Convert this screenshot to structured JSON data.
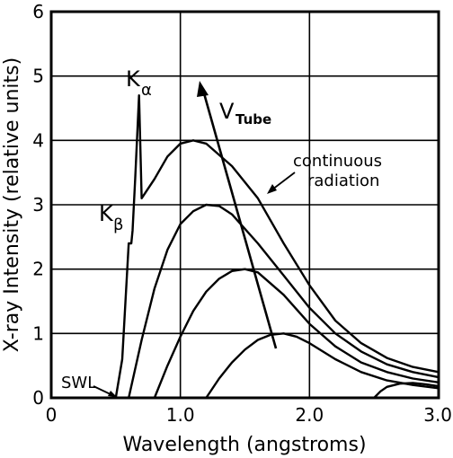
{
  "chart_data": {
    "type": "line",
    "xlabel": "Wavelength (angstroms)",
    "ylabel": "X-ray Intensity (relative units)",
    "xlim": [
      0,
      3.0
    ],
    "ylim": [
      0,
      6
    ],
    "x_ticks": [
      {
        "value": 0,
        "label": "0"
      },
      {
        "value": 1.0,
        "label": "1.0"
      },
      {
        "value": 2.0,
        "label": "2.0"
      },
      {
        "value": 3.0,
        "label": "3.0"
      }
    ],
    "y_ticks": [
      {
        "value": 0,
        "label": "0"
      },
      {
        "value": 1,
        "label": "1"
      },
      {
        "value": 2,
        "label": "2"
      },
      {
        "value": 3,
        "label": "3"
      },
      {
        "value": 4,
        "label": "4"
      },
      {
        "value": 5,
        "label": "5"
      },
      {
        "value": 6,
        "label": "6"
      }
    ],
    "grid": true,
    "series": [
      {
        "points": [
          [
            0.5,
            0
          ],
          [
            0.55,
            0.6
          ],
          [
            0.6,
            2.4
          ],
          [
            0.62,
            2.4
          ],
          [
            0.63,
            2.6
          ],
          [
            0.65,
            3.4
          ],
          [
            0.68,
            4.7
          ],
          [
            0.7,
            3.1
          ],
          [
            0.8,
            3.4
          ],
          [
            0.9,
            3.75
          ],
          [
            1.0,
            3.95
          ],
          [
            1.1,
            4.0
          ],
          [
            1.2,
            3.95
          ],
          [
            1.4,
            3.6
          ],
          [
            1.6,
            3.1
          ],
          [
            1.8,
            2.4
          ],
          [
            2.0,
            1.75
          ],
          [
            2.2,
            1.2
          ],
          [
            2.4,
            0.85
          ],
          [
            2.6,
            0.62
          ],
          [
            2.8,
            0.48
          ],
          [
            3.0,
            0.4
          ]
        ]
      },
      {
        "points": [
          [
            0.6,
            0
          ],
          [
            0.7,
            0.9
          ],
          [
            0.8,
            1.7
          ],
          [
            0.9,
            2.3
          ],
          [
            1.0,
            2.7
          ],
          [
            1.1,
            2.9
          ],
          [
            1.2,
            3.0
          ],
          [
            1.3,
            2.98
          ],
          [
            1.4,
            2.85
          ],
          [
            1.6,
            2.4
          ],
          [
            1.8,
            1.9
          ],
          [
            2.0,
            1.4
          ],
          [
            2.2,
            1.0
          ],
          [
            2.4,
            0.72
          ],
          [
            2.6,
            0.52
          ],
          [
            2.8,
            0.4
          ],
          [
            3.0,
            0.32
          ]
        ]
      },
      {
        "points": [
          [
            0.8,
            0
          ],
          [
            0.9,
            0.5
          ],
          [
            1.0,
            0.95
          ],
          [
            1.1,
            1.35
          ],
          [
            1.2,
            1.65
          ],
          [
            1.3,
            1.85
          ],
          [
            1.4,
            1.97
          ],
          [
            1.5,
            2.0
          ],
          [
            1.6,
            1.95
          ],
          [
            1.8,
            1.6
          ],
          [
            2.0,
            1.15
          ],
          [
            2.2,
            0.8
          ],
          [
            2.4,
            0.55
          ],
          [
            2.6,
            0.4
          ],
          [
            2.8,
            0.3
          ],
          [
            3.0,
            0.24
          ]
        ]
      },
      {
        "points": [
          [
            1.2,
            0
          ],
          [
            1.3,
            0.3
          ],
          [
            1.4,
            0.55
          ],
          [
            1.5,
            0.75
          ],
          [
            1.6,
            0.9
          ],
          [
            1.7,
            0.98
          ],
          [
            1.8,
            1.0
          ],
          [
            1.9,
            0.95
          ],
          [
            2.0,
            0.85
          ],
          [
            2.2,
            0.6
          ],
          [
            2.4,
            0.4
          ],
          [
            2.6,
            0.27
          ],
          [
            2.8,
            0.2
          ],
          [
            3.0,
            0.15
          ]
        ]
      },
      {
        "points": [
          [
            2.5,
            0
          ],
          [
            2.55,
            0.1
          ],
          [
            2.6,
            0.17
          ],
          [
            2.7,
            0.22
          ],
          [
            2.8,
            0.23
          ],
          [
            2.9,
            0.21
          ],
          [
            3.0,
            0.18
          ]
        ]
      }
    ],
    "annotations": [
      {
        "text": "SWL"
      },
      {
        "text": "K",
        "sub": "β"
      },
      {
        "text": "K",
        "sub": "α"
      },
      {
        "text": "V",
        "sub": "Tube"
      },
      {
        "text": "continuous"
      },
      {
        "text": "radiation"
      }
    ]
  }
}
